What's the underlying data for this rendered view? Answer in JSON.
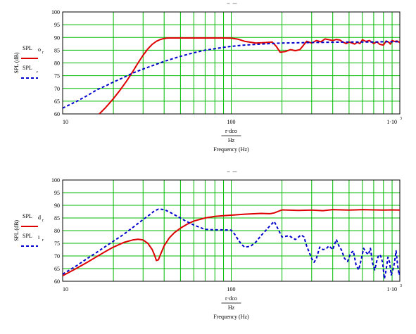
{
  "chart_data": [
    {
      "type": "line",
      "xscale": "log",
      "xlim": [
        10,
        1000
      ],
      "ylim": [
        60,
        100
      ],
      "grid": true,
      "x_tick_labels": [
        "10",
        "100",
        "1·10"
      ],
      "x_tick_exponent": "3",
      "y_ticks": [
        60,
        65,
        70,
        75,
        80,
        85,
        90,
        95,
        100
      ],
      "ylabel": "SPL (dB)",
      "xlabel_lines": [
        "r·dco",
        "Hz",
        "Frequency (Hz)"
      ],
      "legend": [
        {
          "label": "SPL",
          "sub": "o",
          "subsub": "r"
        },
        {
          "label": "SPL",
          "sub": "",
          "subsub": "r"
        }
      ],
      "series": [
        {
          "color": "#dd0000",
          "style": "solid",
          "x": [
            16.5,
            18,
            20,
            22,
            24,
            26,
            28,
            30,
            32,
            34,
            36,
            38,
            40,
            42,
            44,
            50,
            60,
            70,
            80,
            90,
            100,
            110,
            120,
            140,
            160,
            175,
            185,
            195,
            210,
            225,
            240,
            255,
            265,
            280,
            300,
            320,
            340,
            360,
            380,
            400,
            420,
            440,
            460,
            480,
            500,
            520,
            540,
            560,
            580,
            600,
            630,
            660,
            700,
            730,
            760,
            800,
            830,
            860,
            880,
            900,
            930,
            960,
            990,
            1000
          ],
          "y": [
            60,
            62.5,
            66,
            69.5,
            73,
            76.5,
            80,
            83,
            85.5,
            87.3,
            88.5,
            89.2,
            89.6,
            89.8,
            89.8,
            89.8,
            89.8,
            89.8,
            89.8,
            89.8,
            89.7,
            89.3,
            88.5,
            87.8,
            88.0,
            88.2,
            86.5,
            84.2,
            84.5,
            85.2,
            84.8,
            85.2,
            86.5,
            88.5,
            87.8,
            88.8,
            88.3,
            89.4,
            89.1,
            88.8,
            89.2,
            89.0,
            88.2,
            87.6,
            88.2,
            87.8,
            87.4,
            88.1,
            87.6,
            89.1,
            88.4,
            88.8,
            87.6,
            88.3,
            87.3,
            87.0,
            88.6,
            88.1,
            87.4,
            88.8,
            88.4,
            88.6,
            88.2,
            88.0
          ]
        },
        {
          "color": "#0000cc",
          "style": "dashed",
          "x": [
            10,
            12,
            14,
            16,
            18,
            20,
            23,
            26,
            30,
            35,
            40,
            50,
            60,
            70,
            80,
            90,
            100,
            120,
            150,
            200,
            300,
            400,
            500,
            600,
            700,
            800,
            900,
            1000
          ],
          "y": [
            62.3,
            64.8,
            67.2,
            69.5,
            71.0,
            72.5,
            74.3,
            76.0,
            77.6,
            79.2,
            80.6,
            82.6,
            84.0,
            85.0,
            85.6,
            86.1,
            86.5,
            87.0,
            87.4,
            87.8,
            88.0,
            88.1,
            88.2,
            88.2,
            88.2,
            88.3,
            88.3,
            88.3
          ]
        }
      ]
    },
    {
      "type": "line",
      "xscale": "log",
      "xlim": [
        10,
        1000
      ],
      "ylim": [
        60,
        100
      ],
      "grid": true,
      "x_tick_labels": [
        "10",
        "100",
        "1·10"
      ],
      "x_tick_exponent": "3",
      "y_ticks": [
        60,
        65,
        70,
        75,
        80,
        85,
        90,
        95,
        100
      ],
      "ylabel": "SPL (dB)",
      "xlabel_lines": [
        "r·dco",
        "Hz",
        "Frequency (Hz)"
      ],
      "legend": [
        {
          "label": "SPL",
          "sub": "d",
          "subsub": "r"
        },
        {
          "label": "SPL",
          "sub": "i",
          "subsub": "r"
        }
      ],
      "series": [
        {
          "color": "#dd0000",
          "style": "solid",
          "x": [
            10,
            12,
            14,
            16,
            18,
            20,
            23,
            26,
            28,
            30,
            32,
            34,
            35,
            36,
            37,
            38,
            40,
            43,
            46,
            50,
            55,
            60,
            70,
            80,
            90,
            100,
            120,
            150,
            170,
            180,
            200,
            250,
            300,
            350,
            400,
            450,
            500,
            600,
            700,
            800,
            900,
            1000
          ],
          "y": [
            62.2,
            65.0,
            67.5,
            69.8,
            71.8,
            73.5,
            75.3,
            76.3,
            76.6,
            76.3,
            75.0,
            72.5,
            70.5,
            68.2,
            68.5,
            70.5,
            74.0,
            77.2,
            79.2,
            81.0,
            82.6,
            83.8,
            85.0,
            85.6,
            85.9,
            86.1,
            86.5,
            86.8,
            86.7,
            87.0,
            88.2,
            88.0,
            88.1,
            87.9,
            88.3,
            88.2,
            88.1,
            88.3,
            88.2,
            88.1,
            88.2,
            88.1
          ]
        },
        {
          "color": "#0000cc",
          "style": "dashed",
          "x": [
            10,
            12,
            14,
            16,
            18,
            20,
            23,
            26,
            30,
            33,
            35,
            37,
            39,
            41,
            44,
            48,
            53,
            60,
            70,
            80,
            90,
            100,
            105,
            110,
            115,
            120,
            130,
            140,
            150,
            160,
            170,
            180,
            190,
            200,
            220,
            240,
            260,
            270,
            280,
            290,
            300,
            310,
            320,
            335,
            350,
            365,
            380,
            400,
            420,
            435,
            450,
            470,
            490,
            510,
            530,
            550,
            570,
            590,
            610,
            630,
            650,
            670,
            690,
            710,
            730,
            750,
            770,
            790,
            810,
            830,
            850,
            870,
            890,
            910,
            930,
            950,
            970,
            990,
            1000
          ],
          "y": [
            62.8,
            66.0,
            69.0,
            71.5,
            73.8,
            75.8,
            78.5,
            81.2,
            84.4,
            86.4,
            87.8,
            88.5,
            88.4,
            88.0,
            87.0,
            85.6,
            84.0,
            82.2,
            80.5,
            80.3,
            80.3,
            80.2,
            78.5,
            76.4,
            74.6,
            73.5,
            73.8,
            75.5,
            78.0,
            80.0,
            82.0,
            83.6,
            80.5,
            77.5,
            78.0,
            76.5,
            78.3,
            77.5,
            74.0,
            71.5,
            69.0,
            67.5,
            69.0,
            73.5,
            72.5,
            72.8,
            74.0,
            72.5,
            76.5,
            74.0,
            72.5,
            69.0,
            67.8,
            71.0,
            72.0,
            66.5,
            64.5,
            68.5,
            73.0,
            71.5,
            70.5,
            73.0,
            67.0,
            64.5,
            68.0,
            70.5,
            70.0,
            67.5,
            61.0,
            64.5,
            69.5,
            67.5,
            62.5,
            64.5,
            67.5,
            72.0,
            66.5,
            62.5,
            63.5
          ]
        }
      ]
    }
  ]
}
